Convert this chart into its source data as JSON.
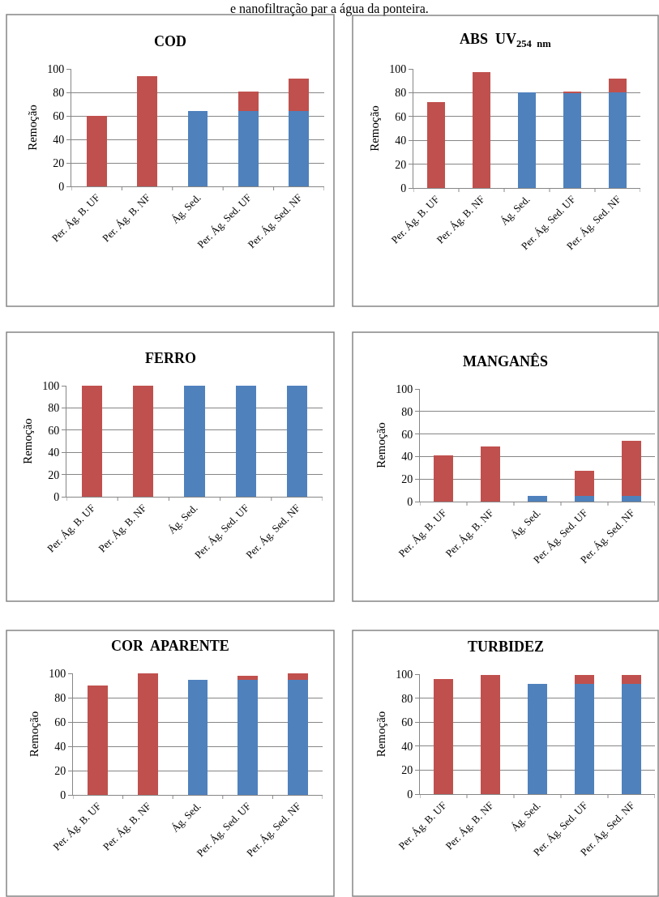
{
  "chart_data": [
    {
      "type": "bar",
      "stacked": true,
      "title": "COD",
      "ylabel": "Remoção",
      "annotations": [
        "e nanofiltração par a água da ponteira."
      ],
      "categories": [
        "Per. Ág. B. UF",
        "Per. Ág. B. NF",
        "Ág. Sed.",
        "Per. Ág. Sed. UF",
        "Per. Ág. Sed. NF"
      ],
      "ylim": [
        0,
        100
      ],
      "yticks": [
        0,
        20,
        40,
        60,
        80,
        100
      ],
      "grid": "y",
      "series": [
        {
          "color": "#4f81bd",
          "values": [
            null,
            null,
            64,
            64,
            64
          ]
        },
        {
          "color": "#c0504d",
          "values": [
            60,
            94,
            null,
            17,
            28
          ]
        }
      ]
    },
    {
      "type": "bar",
      "stacked": true,
      "title": "ABS  UV$_{254  nm}$",
      "ylabel": "Remoção",
      "categories": [
        "Per. Ág. B. UF",
        "Per. Ág. B. NF",
        "Ág. Sed.",
        "Per. Ág. Sed. UF",
        "Per. Ág. Sed. NF"
      ],
      "ylim": [
        0,
        100
      ],
      "yticks": [
        0,
        20,
        40,
        60,
        80,
        100
      ],
      "grid": "y",
      "series": [
        {
          "color": "#4f81bd",
          "values": [
            null,
            null,
            80,
            80,
            80
          ]
        },
        {
          "color": "#c0504d",
          "values": [
            72,
            97,
            null,
            1,
            12
          ]
        }
      ]
    },
    {
      "type": "bar",
      "stacked": true,
      "title": "FERRO",
      "ylabel": "Remoção",
      "categories": [
        "Per. Ág. B. UF",
        "Per. Ág. B. NF",
        "Ág. Sed.",
        "Per. Ág. Sed. UF",
        "Per. Ág. Sed. NF"
      ],
      "ylim": [
        0,
        100
      ],
      "yticks": [
        0,
        20,
        40,
        60,
        80,
        100
      ],
      "grid": "y",
      "series": [
        {
          "color": "#4f81bd",
          "values": [
            null,
            null,
            100,
            100,
            100
          ]
        },
        {
          "color": "#c0504d",
          "values": [
            100,
            100,
            null,
            null,
            null
          ]
        }
      ]
    },
    {
      "type": "bar",
      "stacked": true,
      "title": "MANGANÊS",
      "ylabel": "Remoção",
      "categories": [
        "Per. Ág. B. UF",
        "Per. Ág. B. NF",
        "Ág. Sed.",
        "Per. Ág. Sed. UF",
        "Per. Ág. Sed. NF"
      ],
      "ylim": [
        0,
        100
      ],
      "yticks": [
        0,
        20,
        40,
        60,
        80,
        100
      ],
      "grid": "y",
      "series": [
        {
          "color": "#4f81bd",
          "values": [
            null,
            null,
            5,
            5,
            5
          ]
        },
        {
          "color": "#c0504d",
          "values": [
            41,
            49,
            null,
            22,
            49
          ]
        }
      ]
    },
    {
      "type": "bar",
      "stacked": true,
      "title": "COR  APARENTE",
      "ylabel": "Remoção",
      "categories": [
        "Per. Ág. B. UF",
        "Per. Ág. B. NF",
        "Ág. Sed.",
        "Per. Ág. Sed. UF",
        "Per. Ág. Sed. NF"
      ],
      "ylim": [
        0,
        100
      ],
      "yticks": [
        0,
        20,
        40,
        60,
        80,
        100
      ],
      "grid": "y",
      "series": [
        {
          "color": "#4f81bd",
          "values": [
            null,
            null,
            95,
            95,
            95
          ]
        },
        {
          "color": "#c0504d",
          "values": [
            90,
            100,
            null,
            3,
            5
          ]
        }
      ]
    },
    {
      "type": "bar",
      "stacked": true,
      "title": "TURBIDEZ",
      "ylabel": "Remoção",
      "categories": [
        "Per. Ág. B. UF",
        "Per. Ág. B. NF",
        "Ág. Sed.",
        "Per. Ág. Sed. UF",
        "Per. Ág. Sed. NF"
      ],
      "ylim": [
        0,
        100
      ],
      "yticks": [
        0,
        20,
        40,
        60,
        80,
        100
      ],
      "grid": "y",
      "series": [
        {
          "color": "#4f81bd",
          "values": [
            null,
            null,
            92,
            92,
            92
          ]
        },
        {
          "color": "#c0504d",
          "values": [
            96,
            99,
            null,
            7,
            7
          ]
        }
      ]
    }
  ]
}
